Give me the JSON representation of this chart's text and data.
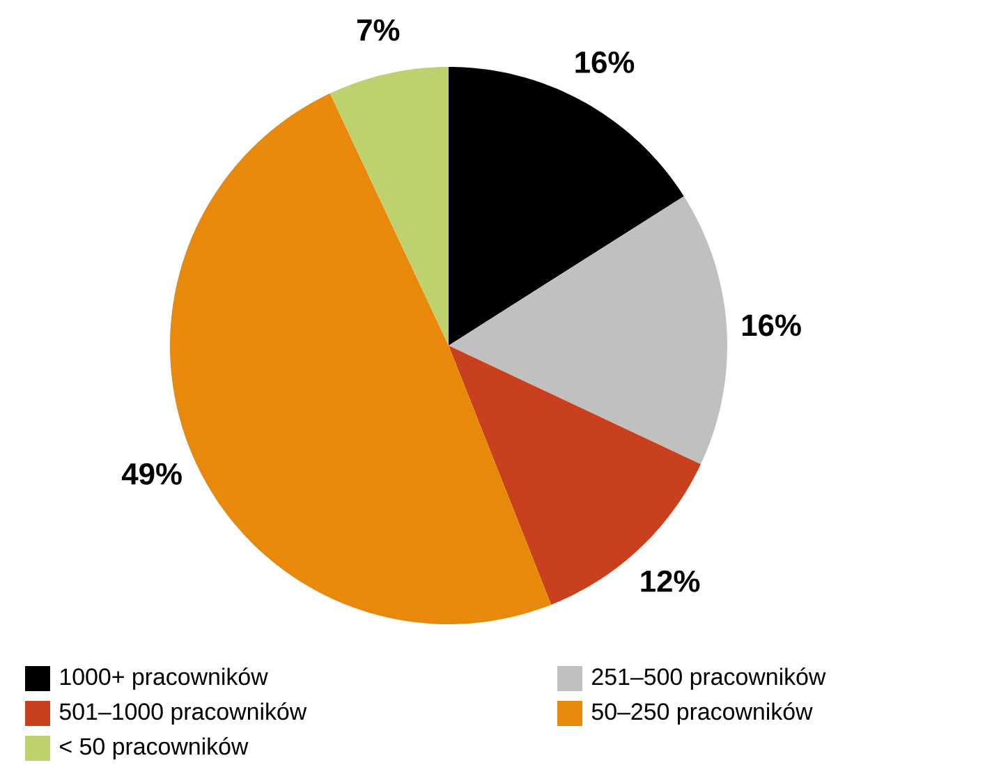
{
  "chart_data": {
    "type": "pie",
    "categories": [
      "1000+ pracowników",
      "251–500 pracowników",
      "501–1000 pracowników",
      "50–250 pracowników",
      "< 50 pracowników"
    ],
    "values": [
      16,
      16,
      12,
      49,
      7
    ],
    "value_labels": [
      "16%",
      "16%",
      "12%",
      "49%",
      "7%"
    ],
    "colors": [
      "#000000",
      "#c0c0c0",
      "#c9401f",
      "#e8890c",
      "#bdd16f"
    ],
    "legend": "bottom"
  }
}
